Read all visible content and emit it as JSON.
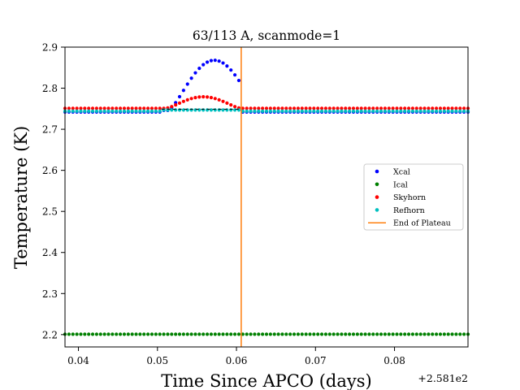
{
  "chart_data": {
    "type": "scatter",
    "title": "63/113 A, scanmode=1",
    "xlabel": "Time Since APCO (days)",
    "ylabel": "Temperature (K)",
    "x_offset_label": "+2.581e2",
    "xlim": [
      0.0383,
      0.0893
    ],
    "ylim": [
      2.17,
      2.9
    ],
    "xticks": [
      0.04,
      0.05,
      0.06,
      0.07,
      0.08
    ],
    "xtick_labels": [
      "0.04",
      "0.05",
      "0.06",
      "0.07",
      "0.08"
    ],
    "yticks": [
      2.2,
      2.3,
      2.4,
      2.5,
      2.6,
      2.7,
      2.8,
      2.9
    ],
    "ytick_labels": [
      "2.2",
      "2.3",
      "2.4",
      "2.5",
      "2.6",
      "2.7",
      "2.8",
      "2.9"
    ],
    "legend_position": "center-right",
    "vline": {
      "name": "End of Plateau",
      "x": 0.0606,
      "color": "#ff7f0e"
    },
    "series": [
      {
        "name": "Xcal",
        "color": "#0000ff",
        "x_start": 0.0383,
        "x_end": 0.0893,
        "x_step": 0.0005,
        "baseline": 2.742,
        "plateau": {
          "x_from": 0.0505,
          "x_to": 0.0606,
          "value": 2.746
        },
        "bump": {
          "center": 0.0572,
          "peak": 2.868,
          "from": 0.0513,
          "to": 0.0606
        }
      },
      {
        "name": "Ical",
        "color": "#008000",
        "x_start": 0.0383,
        "x_end": 0.0893,
        "x_step": 0.0005,
        "baseline": 2.201
      },
      {
        "name": "Skyhorn",
        "color": "#ff0000",
        "x_start": 0.0383,
        "x_end": 0.0893,
        "x_step": 0.0005,
        "baseline": 2.751,
        "bump": {
          "center": 0.0558,
          "peak": 2.779,
          "from": 0.0513,
          "to": 0.0606
        }
      },
      {
        "name": "Refhorn",
        "color": "#00bfbf",
        "x_start": 0.0383,
        "x_end": 0.0893,
        "x_step": 0.0005,
        "baseline": 2.744,
        "plateau": {
          "x_from": 0.0505,
          "x_to": 0.0606,
          "value": 2.747
        }
      }
    ]
  }
}
